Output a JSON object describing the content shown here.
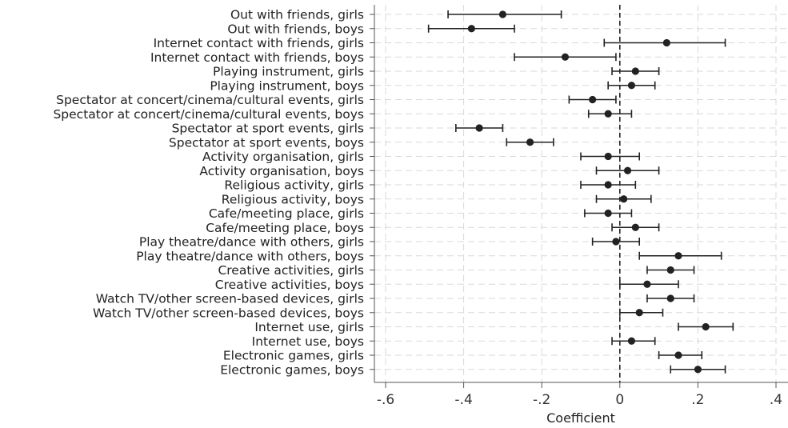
{
  "chart_data": {
    "type": "scatter",
    "subtype": "coefficient-plot",
    "title": "",
    "xlabel": "Coefficient",
    "ylabel": "",
    "xlim": [
      -0.6,
      0.4
    ],
    "xticks": [
      -0.6,
      -0.4,
      -0.2,
      0,
      0.2,
      0.4
    ],
    "xtick_labels": [
      "-.6",
      "-.4",
      "-.2",
      "0",
      ".2",
      ".4"
    ],
    "grid": true,
    "reference_line_x": 0,
    "categories": [
      "Out with friends, girls",
      "Out with friends, boys",
      "Internet contact with friends, girls",
      "Internet contact with friends, boys",
      "Playing instrument, girls",
      "Playing instrument, boys",
      "Spectator at concert/cinema/cultural events, girls",
      "Spectator at concert/cinema/cultural events, boys",
      "Spectator at sport events, girls",
      "Spectator at sport events, boys",
      "Activity organisation, girls",
      "Activity organisation, boys",
      "Religious activity, girls",
      "Religious activity, boys",
      "Cafe/meeting place, girls",
      "Cafe/meeting place, boys",
      "Play theatre/dance with others, girls",
      "Play theatre/dance with others, boys",
      "Creative activities, girls",
      "Creative activities, boys",
      "Watch TV/other screen-based devices, girls",
      "Watch TV/other screen-based devices, boys",
      "Internet use, girls",
      "Internet use, boys",
      "Electronic games, girls",
      "Electronic games, boys"
    ],
    "estimates": [
      -0.3,
      -0.38,
      0.12,
      -0.14,
      0.04,
      0.03,
      -0.07,
      -0.03,
      -0.36,
      -0.23,
      -0.03,
      0.02,
      -0.03,
      0.01,
      -0.03,
      0.04,
      -0.01,
      0.15,
      0.13,
      0.07,
      0.13,
      0.05,
      0.22,
      0.03,
      0.15,
      0.2
    ],
    "ci_low": [
      -0.44,
      -0.49,
      -0.04,
      -0.27,
      -0.02,
      -0.03,
      -0.13,
      -0.08,
      -0.42,
      -0.29,
      -0.1,
      -0.06,
      -0.1,
      -0.06,
      -0.09,
      -0.02,
      -0.07,
      0.05,
      0.07,
      0.0,
      0.07,
      0.0,
      0.15,
      -0.02,
      0.1,
      0.13
    ],
    "ci_high": [
      -0.15,
      -0.27,
      0.27,
      -0.01,
      0.1,
      0.09,
      -0.01,
      0.03,
      -0.3,
      -0.17,
      0.05,
      0.1,
      0.04,
      0.08,
      0.03,
      0.1,
      0.05,
      0.26,
      0.19,
      0.15,
      0.19,
      0.11,
      0.29,
      0.09,
      0.21,
      0.27
    ],
    "colors": {
      "marker": "#222222",
      "reference": "#222222",
      "grid": "#d9d9d9",
      "axis": "#555555"
    }
  }
}
